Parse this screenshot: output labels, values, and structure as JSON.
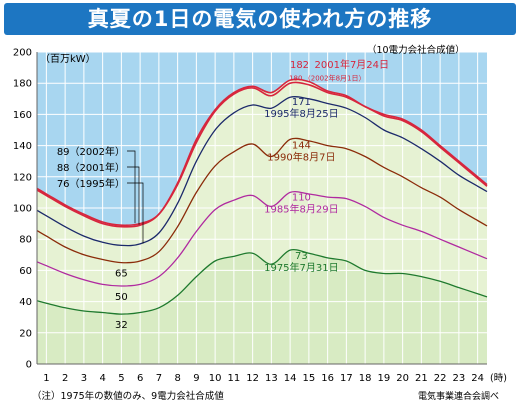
{
  "title": "真夏の1日の電気の使われ方の推移",
  "note_top": "（10電力会社合成値）",
  "note_bottom": "（注）1975年の数値のみ、9電力会社合成値",
  "source": "電気事業連合会調べ",
  "chart_data": {
    "type": "line",
    "title": "真夏の1日の電気の使われ方の推移",
    "ylabel": "（百万kW）",
    "xlabel": "（時）",
    "ylim": [
      0,
      200
    ],
    "yticks": [
      0,
      20,
      40,
      60,
      80,
      100,
      120,
      140,
      160,
      180,
      200
    ],
    "x": [
      1,
      2,
      3,
      4,
      5,
      6,
      7,
      8,
      9,
      10,
      11,
      12,
      13,
      14,
      15,
      16,
      17,
      18,
      19,
      20,
      21,
      22,
      23,
      24
    ],
    "x_tick_labels": [
      "1",
      "2",
      "3",
      "4",
      "5",
      "6",
      "7",
      "8",
      "9",
      "10",
      "11",
      "12",
      "13",
      "14",
      "15",
      "16",
      "17",
      "18",
      "19",
      "20",
      "21",
      "22",
      "23",
      "24"
    ],
    "x_unit_label": "(時)",
    "grid": true,
    "series": [
      {
        "name": "2001年7月24日",
        "peak_label": "182",
        "date_label": "2001年7月24日",
        "start_label": "88（2001年）",
        "min_label": "",
        "color": "#d7263d",
        "values": [
          108,
          101,
          95,
          90,
          88,
          89,
          96,
          116,
          144,
          163,
          174,
          178,
          174,
          182,
          181,
          175,
          172,
          165,
          160,
          157,
          150,
          140,
          130,
          120
        ]
      },
      {
        "name": "2002年8月1日",
        "peak_label": "180",
        "date_label": "（2002年8月1日）",
        "start_label": "89（2002年）",
        "min_label": "",
        "color": "#d7263d",
        "values": [
          109,
          102,
          96,
          91,
          89,
          90,
          96,
          115,
          142,
          162,
          173,
          177,
          172,
          180,
          179,
          174,
          171,
          165,
          159,
          156,
          149,
          139,
          129,
          119
        ]
      },
      {
        "name": "1995年8月25日",
        "peak_label": "171",
        "date_label": "1995年8月25日",
        "start_label": "76（1995年）",
        "min_label": "",
        "color": "#1c2a6b",
        "values": [
          95,
          88,
          82,
          78,
          76,
          77,
          84,
          103,
          130,
          150,
          161,
          166,
          164,
          171,
          170,
          167,
          164,
          158,
          150,
          145,
          138,
          130,
          121,
          114
        ]
      },
      {
        "name": "1990年8月7日",
        "peak_label": "144",
        "date_label": "1990年8月7日",
        "start_label": "",
        "min_label": "65",
        "color": "#8b2c0a",
        "values": [
          82,
          75,
          70,
          67,
          65,
          66,
          72,
          88,
          110,
          127,
          136,
          141,
          133,
          144,
          143,
          140,
          138,
          133,
          126,
          120,
          113,
          107,
          99,
          92
        ]
      },
      {
        "name": "1985年8月29日",
        "peak_label": "110",
        "date_label": "1985年8月29日",
        "start_label": "",
        "min_label": "50",
        "color": "#b02aa0",
        "values": [
          63,
          58,
          54,
          51,
          50,
          51,
          56,
          68,
          85,
          99,
          105,
          108,
          101,
          110,
          109,
          107,
          106,
          101,
          94,
          89,
          85,
          80,
          75,
          70
        ]
      },
      {
        "name": "1975年7月31日",
        "peak_label": "73",
        "date_label": "1975年7月31日",
        "start_label": "",
        "min_label": "32",
        "color": "#1f7a2e",
        "values": [
          39,
          36,
          34,
          33,
          32,
          33,
          36,
          44,
          56,
          66,
          69,
          71,
          64,
          73,
          71,
          68,
          66,
          60,
          58,
          58,
          56,
          53,
          49,
          45
        ]
      }
    ],
    "colors": {
      "sky": "#a8d6f0",
      "fill": "#e6f2d3",
      "fill_lower": "#d8ebc3",
      "grid": "#ffffff",
      "title_bg": "#1d76c2"
    }
  }
}
